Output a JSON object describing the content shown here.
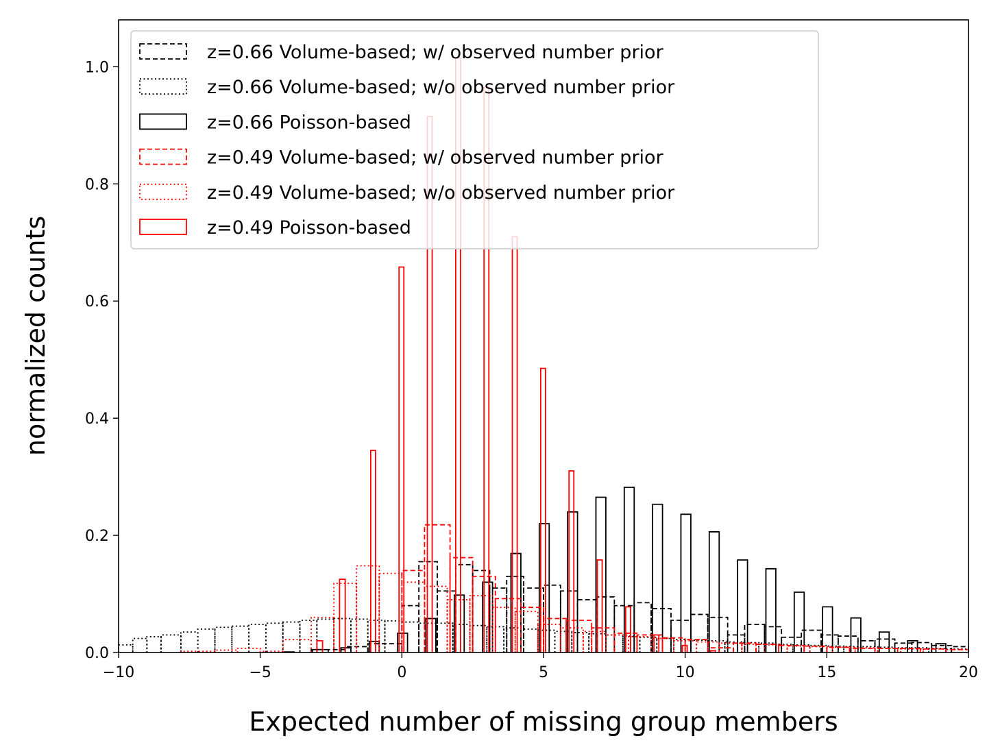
{
  "chart_data": {
    "type": "histogram",
    "title": "",
    "xlabel": "Expected number of missing group members",
    "ylabel": "normalized counts",
    "xlim": [
      -10,
      20
    ],
    "ylim": [
      0,
      1.08
    ],
    "xticks": [
      -10,
      -5,
      0,
      5,
      10,
      15,
      20
    ],
    "xtick_labels": [
      "−10",
      "−5",
      "0",
      "5",
      "10",
      "15",
      "20"
    ],
    "yticks": [
      0,
      0.2,
      0.4,
      0.6,
      0.8,
      1.0
    ],
    "ytick_labels": [
      "0.0",
      "0.2",
      "0.4",
      "0.6",
      "0.8",
      "1.0"
    ],
    "legend_position": "top-left",
    "series": [
      {
        "name": "z=0.66 Volume-based; w/ observed number prior",
        "label": "z=0.66 Volume-based; w/ observed number prior",
        "color": "#000000",
        "style": "dashed",
        "bins": [
          [
            -3.2,
            -2.6,
            0.005
          ],
          [
            -2.6,
            -2.0,
            0.005
          ],
          [
            -2.0,
            -1.2,
            0.01
          ],
          [
            -1.2,
            0.0,
            0.015
          ],
          [
            0.0,
            0.6,
            0.08
          ],
          [
            0.6,
            1.25,
            0.155
          ],
          [
            1.25,
            1.9,
            0.105
          ],
          [
            1.9,
            2.5,
            0.15
          ],
          [
            2.5,
            3.1,
            0.14
          ],
          [
            3.1,
            3.7,
            0.11
          ],
          [
            3.7,
            4.3,
            0.13
          ],
          [
            4.3,
            5.0,
            0.11
          ],
          [
            5.0,
            5.6,
            0.115
          ],
          [
            5.6,
            6.2,
            0.105
          ],
          [
            6.2,
            6.9,
            0.09
          ],
          [
            6.9,
            7.5,
            0.095
          ],
          [
            7.5,
            8.2,
            0.08
          ],
          [
            8.2,
            8.8,
            0.085
          ],
          [
            8.8,
            9.5,
            0.075
          ],
          [
            9.5,
            10.2,
            0.055
          ],
          [
            10.2,
            10.8,
            0.065
          ],
          [
            10.8,
            11.5,
            0.06
          ],
          [
            11.5,
            12.1,
            0.03
          ],
          [
            12.1,
            12.8,
            0.048
          ],
          [
            12.8,
            13.4,
            0.044
          ],
          [
            13.4,
            14.1,
            0.026
          ],
          [
            14.1,
            14.8,
            0.038
          ],
          [
            14.8,
            15.4,
            0.03
          ],
          [
            15.4,
            16.1,
            0.028
          ],
          [
            16.1,
            16.7,
            0.02
          ],
          [
            16.7,
            17.4,
            0.023
          ],
          [
            17.4,
            18.0,
            0.016
          ],
          [
            18.0,
            18.7,
            0.017
          ],
          [
            18.7,
            19.4,
            0.012
          ],
          [
            19.4,
            20.0,
            0.01
          ]
        ]
      },
      {
        "name": "z=0.66 Volume-based; w/o observed number prior",
        "label": "z=0.66 Volume-based; w/o observed number prior",
        "color": "#000000",
        "style": "dotted",
        "bins": [
          [
            -10.0,
            -9.5,
            0.013
          ],
          [
            -9.5,
            -9.0,
            0.024
          ],
          [
            -9.0,
            -8.5,
            0.027
          ],
          [
            -8.5,
            -7.8,
            0.03
          ],
          [
            -7.8,
            -7.2,
            0.035
          ],
          [
            -7.2,
            -6.6,
            0.04
          ],
          [
            -6.6,
            -6.0,
            0.043
          ],
          [
            -6.0,
            -5.4,
            0.045
          ],
          [
            -5.4,
            -4.8,
            0.048
          ],
          [
            -4.8,
            -4.2,
            0.05
          ],
          [
            -4.2,
            -3.6,
            0.052
          ],
          [
            -3.6,
            -3.0,
            0.055
          ],
          [
            -3.0,
            -2.4,
            0.057
          ],
          [
            -2.4,
            -1.8,
            0.058
          ],
          [
            -1.8,
            -1.2,
            0.057
          ],
          [
            -1.2,
            -0.6,
            0.055
          ],
          [
            -0.6,
            0.0,
            0.054
          ],
          [
            0.0,
            0.6,
            0.052
          ],
          [
            0.6,
            1.2,
            0.05
          ],
          [
            1.2,
            1.8,
            0.05
          ],
          [
            1.8,
            2.4,
            0.048
          ],
          [
            2.4,
            3.0,
            0.046
          ],
          [
            3.0,
            3.6,
            0.044
          ],
          [
            3.6,
            4.2,
            0.042
          ],
          [
            4.2,
            4.8,
            0.04
          ],
          [
            4.8,
            5.4,
            0.038
          ],
          [
            5.4,
            6.0,
            0.036
          ],
          [
            6.0,
            6.6,
            0.034
          ],
          [
            6.6,
            7.2,
            0.032
          ],
          [
            7.2,
            7.8,
            0.03
          ],
          [
            7.8,
            8.4,
            0.028
          ],
          [
            8.4,
            9.0,
            0.026
          ],
          [
            9.0,
            9.6,
            0.024
          ],
          [
            9.6,
            10.2,
            0.022
          ],
          [
            10.2,
            10.8,
            0.021
          ],
          [
            10.8,
            11.4,
            0.02
          ],
          [
            11.4,
            12.0,
            0.018
          ],
          [
            12.0,
            12.6,
            0.017
          ],
          [
            12.6,
            13.2,
            0.016
          ],
          [
            13.2,
            13.8,
            0.014
          ],
          [
            13.8,
            14.4,
            0.013
          ],
          [
            14.4,
            15.0,
            0.012
          ],
          [
            15.0,
            15.6,
            0.011
          ],
          [
            15.6,
            16.2,
            0.01
          ],
          [
            16.2,
            16.8,
            0.01
          ],
          [
            16.8,
            17.4,
            0.009
          ],
          [
            17.4,
            18.0,
            0.008
          ],
          [
            18.0,
            18.6,
            0.008
          ],
          [
            18.6,
            19.2,
            0.007
          ],
          [
            19.2,
            20.0,
            0.006
          ]
        ]
      },
      {
        "name": "z=0.66 Poisson-based",
        "label": "z=0.66 Poisson-based",
        "color": "#000000",
        "style": "solid",
        "bins": [
          [
            -4.15,
            -3.8,
            0.001
          ],
          [
            -3.15,
            -2.8,
            0.005
          ],
          [
            -2.15,
            -1.8,
            0.008
          ],
          [
            -1.15,
            -0.8,
            0.019
          ],
          [
            -0.15,
            0.2,
            0.033
          ],
          [
            0.85,
            1.2,
            0.058
          ],
          [
            1.85,
            2.2,
            0.098
          ],
          [
            2.85,
            3.2,
            0.12
          ],
          [
            3.85,
            4.2,
            0.169
          ],
          [
            4.85,
            5.2,
            0.22
          ],
          [
            5.85,
            6.2,
            0.24
          ],
          [
            6.85,
            7.2,
            0.265
          ],
          [
            7.85,
            8.2,
            0.282
          ],
          [
            8.85,
            9.2,
            0.253
          ],
          [
            9.85,
            10.2,
            0.236
          ],
          [
            10.85,
            11.2,
            0.206
          ],
          [
            11.85,
            12.2,
            0.158
          ],
          [
            12.85,
            13.2,
            0.143
          ],
          [
            13.85,
            14.2,
            0.103
          ],
          [
            14.85,
            15.2,
            0.078
          ],
          [
            15.85,
            16.2,
            0.059
          ],
          [
            16.85,
            17.2,
            0.035
          ],
          [
            17.85,
            18.2,
            0.02
          ],
          [
            18.85,
            19.2,
            0.015
          ]
        ]
      },
      {
        "name": "z=0.49 Volume-based; w/ observed number prior",
        "label": "z=0.49 Volume-based; w/ observed number prior",
        "color": "#ff0000",
        "style": "dashed",
        "bins": [
          [
            0.0,
            0.8,
            0.14
          ],
          [
            0.8,
            1.7,
            0.218
          ],
          [
            1.7,
            2.5,
            0.162
          ],
          [
            2.5,
            3.3,
            0.13
          ],
          [
            3.3,
            4.2,
            0.092
          ],
          [
            4.2,
            5.0,
            0.077
          ],
          [
            5.0,
            5.8,
            0.058
          ],
          [
            5.8,
            6.7,
            0.055
          ],
          [
            6.7,
            7.5,
            0.042
          ],
          [
            7.5,
            8.3,
            0.033
          ],
          [
            8.3,
            9.2,
            0.03
          ],
          [
            9.2,
            10.0,
            0.025
          ],
          [
            10.0,
            10.8,
            0.022
          ],
          [
            10.8,
            11.7,
            0.008
          ],
          [
            11.7,
            12.5,
            0.016
          ],
          [
            12.5,
            13.3,
            0.014
          ],
          [
            13.3,
            14.2,
            0.012
          ],
          [
            14.2,
            15.0,
            0.011
          ],
          [
            15.0,
            15.8,
            0.009
          ],
          [
            15.8,
            16.7,
            0.007
          ],
          [
            16.7,
            17.5,
            0.007
          ],
          [
            17.5,
            18.3,
            0.007
          ],
          [
            18.3,
            19.2,
            0.006
          ],
          [
            19.2,
            20.0,
            0.005
          ]
        ]
      },
      {
        "name": "z=0.49 Volume-based; w/o observed number prior",
        "label": "z=0.49 Volume-based; w/o observed number prior",
        "color": "#ff0000",
        "style": "dotted",
        "bins": [
          [
            -7.8,
            -6.6,
            0.002
          ],
          [
            -6.6,
            -5.8,
            0.004
          ],
          [
            -5.8,
            -5.0,
            0.007
          ],
          [
            -5.0,
            -4.2,
            0.002
          ],
          [
            -4.2,
            -3.2,
            0.022
          ],
          [
            -3.2,
            -2.4,
            0.06
          ],
          [
            -2.4,
            -1.6,
            0.118
          ],
          [
            -1.6,
            -0.8,
            0.148
          ],
          [
            -0.8,
            0.0,
            0.135
          ],
          [
            0.0,
            0.8,
            0.12
          ],
          [
            0.8,
            1.6,
            0.113
          ],
          [
            1.6,
            2.4,
            0.09
          ],
          [
            2.4,
            3.2,
            0.097
          ],
          [
            3.2,
            4.0,
            0.077
          ],
          [
            4.0,
            4.8,
            0.07
          ],
          [
            4.8,
            5.6,
            0.048
          ],
          [
            5.6,
            6.4,
            0.042
          ],
          [
            6.4,
            7.2,
            0.036
          ],
          [
            7.2,
            8.0,
            0.03
          ],
          [
            8.0,
            8.8,
            0.027
          ],
          [
            8.8,
            9.6,
            0.024
          ],
          [
            9.6,
            10.4,
            0.02
          ],
          [
            10.4,
            11.2,
            0.018
          ],
          [
            11.2,
            12.0,
            0.016
          ],
          [
            12.0,
            12.8,
            0.014
          ],
          [
            12.8,
            13.6,
            0.013
          ],
          [
            13.6,
            14.4,
            0.011
          ],
          [
            14.4,
            15.2,
            0.01
          ],
          [
            15.2,
            16.0,
            0.009
          ],
          [
            16.0,
            16.8,
            0.008
          ],
          [
            16.8,
            17.6,
            0.007
          ],
          [
            17.6,
            18.4,
            0.006
          ],
          [
            18.4,
            19.2,
            0.006
          ],
          [
            19.2,
            20.0,
            0.005
          ]
        ]
      },
      {
        "name": "z=0.49 Poisson-based",
        "label": "z=0.49 Poisson-based",
        "color": "#ff0000",
        "style": "solid",
        "bins": [
          [
            -3.0,
            -2.8,
            0.02
          ],
          [
            -2.2,
            -2.0,
            0.125
          ],
          [
            -1.1,
            -0.93,
            0.345
          ],
          [
            -0.1,
            0.07,
            0.658
          ],
          [
            0.9,
            1.07,
            0.915
          ],
          [
            1.9,
            2.07,
            1.015
          ],
          [
            2.9,
            3.07,
            0.965
          ],
          [
            3.9,
            4.07,
            0.71
          ],
          [
            4.9,
            5.07,
            0.485
          ],
          [
            5.9,
            6.07,
            0.31
          ],
          [
            6.9,
            7.07,
            0.158
          ],
          [
            7.9,
            8.07,
            0.078
          ],
          [
            8.9,
            9.07,
            0.03
          ],
          [
            9.9,
            10.07,
            0.012
          ],
          [
            10.9,
            11.07,
            0.003
          ]
        ]
      }
    ]
  }
}
